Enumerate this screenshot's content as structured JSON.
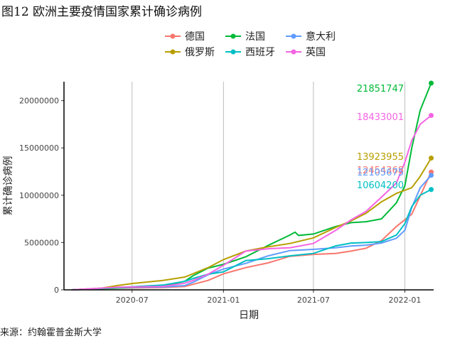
{
  "figure": {
    "title": "图12 欧洲主要疫情国家累计确诊病例",
    "source": "来源：约翰霍普金斯大学"
  },
  "chart_data": {
    "type": "line",
    "title": "图12 欧洲主要疫情国家累计确诊病例",
    "xlabel": "日期",
    "ylabel": "累计确诊病例",
    "x_ticks": [
      "2020-07",
      "2021-01",
      "2021-07",
      "2022-01"
    ],
    "y_ticks": [
      "0",
      "5000000",
      "10000000",
      "15000000",
      "20000000"
    ],
    "ylim": [
      0,
      22000000
    ],
    "xlim": [
      "2020-02-15",
      "2022-02-28"
    ],
    "grid": "vertical",
    "legend_position": "top",
    "series": [
      {
        "name": "德国",
        "color": "#F8766D",
        "end_label": "12454368",
        "points": [
          [
            "2020-03-01",
            0
          ],
          [
            "2020-06-01",
            180000
          ],
          [
            "2020-09-01",
            250000
          ],
          [
            "2020-10-15",
            350000
          ],
          [
            "2020-12-01",
            1000000
          ],
          [
            "2021-01-01",
            1700000
          ],
          [
            "2021-02-15",
            2350000
          ],
          [
            "2021-04-01",
            2850000
          ],
          [
            "2021-05-15",
            3550000
          ],
          [
            "2021-07-01",
            3750000
          ],
          [
            "2021-08-15",
            3850000
          ],
          [
            "2021-09-15",
            4100000
          ],
          [
            "2021-10-15",
            4400000
          ],
          [
            "2021-11-15",
            5200000
          ],
          [
            "2021-12-15",
            6700000
          ],
          [
            "2022-01-15",
            8000000
          ],
          [
            "2022-02-23",
            12454368
          ]
        ]
      },
      {
        "name": "法国",
        "color": "#00BA38",
        "end_label": "21851747",
        "points": [
          [
            "2020-03-01",
            0
          ],
          [
            "2020-06-01",
            190000
          ],
          [
            "2020-09-01",
            350000
          ],
          [
            "2020-10-15",
            900000
          ],
          [
            "2020-11-01",
            1500000
          ],
          [
            "2020-12-01",
            2300000
          ],
          [
            "2021-01-01",
            2700000
          ],
          [
            "2021-02-15",
            3500000
          ],
          [
            "2021-04-01",
            4700000
          ],
          [
            "2021-05-15",
            5800000
          ],
          [
            "2021-05-25",
            6100000
          ],
          [
            "2021-06-01",
            5750000
          ],
          [
            "2021-07-01",
            5900000
          ],
          [
            "2021-08-15",
            6700000
          ],
          [
            "2021-09-15",
            7100000
          ],
          [
            "2021-10-15",
            7200000
          ],
          [
            "2021-11-15",
            7500000
          ],
          [
            "2021-12-15",
            9200000
          ],
          [
            "2022-01-01",
            11000000
          ],
          [
            "2022-01-15",
            15000000
          ],
          [
            "2022-02-01",
            19000000
          ],
          [
            "2022-02-23",
            21851747
          ]
        ]
      },
      {
        "name": "意大利",
        "color": "#619CFF",
        "end_label": "12105675",
        "points": [
          [
            "2020-03-01",
            0
          ],
          [
            "2020-06-01",
            240000
          ],
          [
            "2020-09-01",
            300000
          ],
          [
            "2020-10-15",
            450000
          ],
          [
            "2020-11-01",
            800000
          ],
          [
            "2020-12-01",
            1600000
          ],
          [
            "2021-01-01",
            2200000
          ],
          [
            "2021-02-15",
            2800000
          ],
          [
            "2021-04-01",
            3600000
          ],
          [
            "2021-05-15",
            4150000
          ],
          [
            "2021-07-01",
            4280000
          ],
          [
            "2021-08-15",
            4450000
          ],
          [
            "2021-09-15",
            4630000
          ],
          [
            "2021-10-15",
            4720000
          ],
          [
            "2021-11-15",
            4950000
          ],
          [
            "2021-12-15",
            5450000
          ],
          [
            "2022-01-01",
            6300000
          ],
          [
            "2022-01-15",
            8700000
          ],
          [
            "2022-02-01",
            10800000
          ],
          [
            "2022-02-23",
            12105675
          ]
        ]
      },
      {
        "name": "俄罗斯",
        "color": "#B79F00",
        "end_label": "13923955",
        "points": [
          [
            "2020-03-01",
            0
          ],
          [
            "2020-05-01",
            180000
          ],
          [
            "2020-06-01",
            450000
          ],
          [
            "2020-07-01",
            670000
          ],
          [
            "2020-09-01",
            1000000
          ],
          [
            "2020-10-15",
            1350000
          ],
          [
            "2020-12-01",
            2350000
          ],
          [
            "2021-01-01",
            3200000
          ],
          [
            "2021-02-15",
            4100000
          ],
          [
            "2021-04-01",
            4550000
          ],
          [
            "2021-05-15",
            4900000
          ],
          [
            "2021-07-01",
            5500000
          ],
          [
            "2021-08-15",
            6600000
          ],
          [
            "2021-09-15",
            7300000
          ],
          [
            "2021-10-15",
            8100000
          ],
          [
            "2021-11-15",
            9300000
          ],
          [
            "2021-12-15",
            10200000
          ],
          [
            "2022-01-15",
            10800000
          ],
          [
            "2022-02-01",
            12000000
          ],
          [
            "2022-02-23",
            13923955
          ]
        ]
      },
      {
        "name": "西班牙",
        "color": "#00BFC4",
        "end_label": "10604200",
        "points": [
          [
            "2020-03-01",
            0
          ],
          [
            "2020-06-01",
            240000
          ],
          [
            "2020-09-01",
            500000
          ],
          [
            "2020-10-15",
            900000
          ],
          [
            "2020-11-01",
            1200000
          ],
          [
            "2020-12-01",
            1650000
          ],
          [
            "2021-01-01",
            1900000
          ],
          [
            "2021-02-15",
            3100000
          ],
          [
            "2021-04-01",
            3300000
          ],
          [
            "2021-05-15",
            3600000
          ],
          [
            "2021-07-01",
            3850000
          ],
          [
            "2021-08-15",
            4650000
          ],
          [
            "2021-09-15",
            4950000
          ],
          [
            "2021-10-15",
            5000000
          ],
          [
            "2021-11-15",
            5100000
          ],
          [
            "2021-12-15",
            5800000
          ],
          [
            "2022-01-01",
            7000000
          ],
          [
            "2022-01-15",
            8800000
          ],
          [
            "2022-02-01",
            10000000
          ],
          [
            "2022-02-23",
            10604200
          ]
        ]
      },
      {
        "name": "英国",
        "color": "#F564E3",
        "end_label": "18433001",
        "points": [
          [
            "2020-03-01",
            0
          ],
          [
            "2020-06-01",
            280000
          ],
          [
            "2020-09-01",
            350000
          ],
          [
            "2020-10-15",
            700000
          ],
          [
            "2020-11-01",
            1000000
          ],
          [
            "2020-12-01",
            1650000
          ],
          [
            "2021-01-01",
            2600000
          ],
          [
            "2021-02-15",
            4100000
          ],
          [
            "2021-04-01",
            4350000
          ],
          [
            "2021-05-15",
            4450000
          ],
          [
            "2021-07-01",
            4900000
          ],
          [
            "2021-08-15",
            6300000
          ],
          [
            "2021-09-15",
            7400000
          ],
          [
            "2021-10-15",
            8300000
          ],
          [
            "2021-11-15",
            9800000
          ],
          [
            "2021-12-15",
            11300000
          ],
          [
            "2022-01-01",
            13500000
          ],
          [
            "2022-01-15",
            15800000
          ],
          [
            "2022-02-01",
            17500000
          ],
          [
            "2022-02-23",
            18433001
          ]
        ]
      }
    ]
  }
}
